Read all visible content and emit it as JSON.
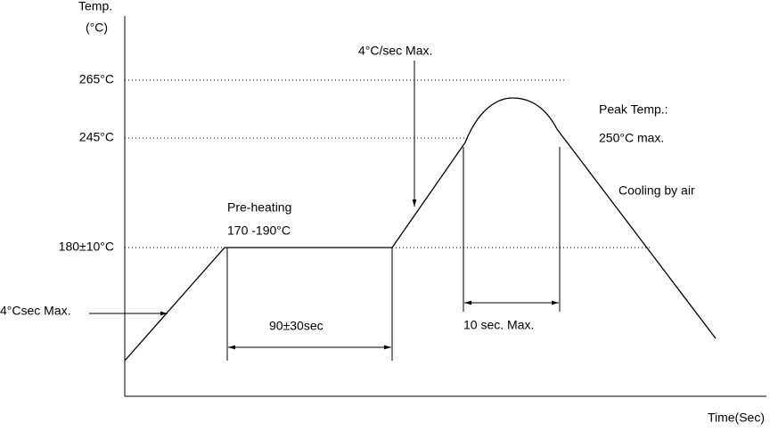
{
  "axes": {
    "y_label": "Temp.",
    "y_unit": "(°C)",
    "x_label": "Time(Sec)"
  },
  "levels": [
    "265°C",
    "245°C",
    "180±10°C"
  ],
  "annotations": {
    "ramp_up_top": "4°C/sec Max.",
    "peak_title": "Peak Temp.:",
    "peak_value": "250°C max.",
    "cooling": "Cooling by air",
    "preheat_title": "Pre-heating",
    "preheat_range": "170 -190°C",
    "ramp_up_bottom": "4°Csec Max.",
    "preheat_time": "90±30sec",
    "peak_time": "10 sec. Max."
  }
}
